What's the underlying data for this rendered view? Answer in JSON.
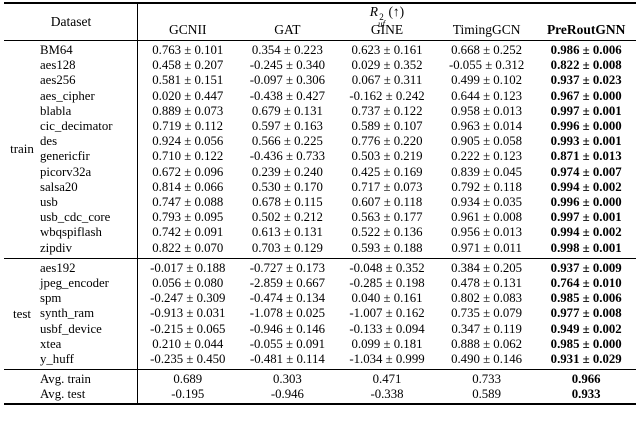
{
  "table": {
    "header": {
      "dataset_label": "Dataset",
      "metric_R": "R",
      "metric_sup": "2",
      "metric_sub": "uf",
      "metric_arrow": "(↑)",
      "columns": [
        "GCNII",
        "GAT",
        "GINE",
        "TimingGCN",
        "PreRoutGNN"
      ],
      "bold_column": "PreRoutGNN"
    },
    "sections": [
      {
        "group": "train",
        "rows": [
          {
            "dataset": "BM64",
            "values": [
              "0.763 ± 0.101",
              "0.354 ± 0.223",
              "0.623 ± 0.161",
              "0.668 ± 0.252",
              "0.986 ± 0.006"
            ]
          },
          {
            "dataset": "aes128",
            "values": [
              "0.458 ± 0.207",
              "-0.245 ± 0.340",
              "0.029 ± 0.352",
              "-0.055 ± 0.312",
              "0.822 ± 0.008"
            ]
          },
          {
            "dataset": "aes256",
            "values": [
              "0.581 ± 0.151",
              "-0.097 ± 0.306",
              "0.067 ± 0.311",
              "0.499 ± 0.102",
              "0.937 ± 0.023"
            ]
          },
          {
            "dataset": "aes_cipher",
            "values": [
              "0.020 ± 0.447",
              "-0.438 ± 0.427",
              "-0.162 ± 0.242",
              "0.644 ± 0.123",
              "0.967 ± 0.000"
            ]
          },
          {
            "dataset": "blabla",
            "values": [
              "0.889 ± 0.073",
              "0.679 ± 0.131",
              "0.737 ± 0.122",
              "0.958 ± 0.013",
              "0.997 ± 0.001"
            ]
          },
          {
            "dataset": "cic_decimator",
            "values": [
              "0.719 ± 0.112",
              "0.597 ± 0.163",
              "0.589 ± 0.107",
              "0.963 ± 0.014",
              "0.996 ± 0.000"
            ]
          },
          {
            "dataset": "des",
            "values": [
              "0.924 ± 0.056",
              "0.566 ± 0.225",
              "0.776 ± 0.220",
              "0.905 ± 0.058",
              "0.993 ± 0.001"
            ]
          },
          {
            "dataset": "genericfir",
            "values": [
              "0.710 ± 0.122",
              "-0.436 ± 0.733",
              "0.503 ± 0.219",
              "0.222 ± 0.123",
              "0.871 ± 0.013"
            ]
          },
          {
            "dataset": "picorv32a",
            "values": [
              "0.672 ± 0.096",
              "0.239 ± 0.240",
              "0.425 ± 0.169",
              "0.839 ± 0.045",
              "0.974 ± 0.007"
            ]
          },
          {
            "dataset": "salsa20",
            "values": [
              "0.814 ± 0.066",
              "0.530 ± 0.170",
              "0.717 ± 0.073",
              "0.792 ± 0.118",
              "0.994 ± 0.002"
            ]
          },
          {
            "dataset": "usb",
            "values": [
              "0.747 ± 0.088",
              "0.678 ± 0.115",
              "0.607 ± 0.118",
              "0.934 ± 0.035",
              "0.996 ± 0.000"
            ]
          },
          {
            "dataset": "usb_cdc_core",
            "values": [
              "0.793 ± 0.095",
              "0.502 ± 0.212",
              "0.563 ± 0.177",
              "0.961 ± 0.008",
              "0.997 ± 0.001"
            ]
          },
          {
            "dataset": "wbqspiflash",
            "values": [
              "0.742 ± 0.091",
              "0.613 ± 0.131",
              "0.522 ± 0.136",
              "0.956 ± 0.013",
              "0.994 ± 0.002"
            ]
          },
          {
            "dataset": "zipdiv",
            "values": [
              "0.822 ± 0.070",
              "0.703 ± 0.129",
              "0.593 ± 0.188",
              "0.971 ± 0.011",
              "0.998 ± 0.001"
            ]
          }
        ]
      },
      {
        "group": "test",
        "rows": [
          {
            "dataset": "aes192",
            "values": [
              "-0.017 ± 0.188",
              "-0.727 ± 0.173",
              "-0.048 ± 0.352",
              "0.384 ± 0.205",
              "0.937 ± 0.009"
            ]
          },
          {
            "dataset": "jpeg_encoder",
            "values": [
              "0.056 ± 0.080",
              "-2.859 ± 0.667",
              "-0.285 ± 0.198",
              "0.478 ± 0.131",
              "0.764 ± 0.010"
            ]
          },
          {
            "dataset": "spm",
            "values": [
              "-0.247 ± 0.309",
              "-0.474 ± 0.134",
              "0.040 ± 0.161",
              "0.802 ± 0.083",
              "0.985 ± 0.006"
            ]
          },
          {
            "dataset": "synth_ram",
            "values": [
              "-0.913 ± 0.031",
              "-1.078 ± 0.025",
              "-1.007 ± 0.162",
              "0.735 ± 0.079",
              "0.977 ± 0.008"
            ]
          },
          {
            "dataset": "usbf_device",
            "values": [
              "-0.215 ± 0.065",
              "-0.946 ± 0.146",
              "-0.133 ± 0.094",
              "0.347 ± 0.119",
              "0.949 ± 0.002"
            ]
          },
          {
            "dataset": "xtea",
            "values": [
              "0.210 ± 0.044",
              "-0.055 ± 0.091",
              "0.099 ± 0.181",
              "0.888 ± 0.062",
              "0.985 ± 0.000"
            ]
          },
          {
            "dataset": "y_huff",
            "values": [
              "-0.235 ± 0.450",
              "-0.481 ± 0.114",
              "-1.034 ± 0.999",
              "0.490 ± 0.146",
              "0.931 ± 0.029"
            ]
          }
        ]
      }
    ],
    "summary": [
      {
        "label": "Avg. train",
        "values": [
          "0.689",
          "0.303",
          "0.471",
          "0.733",
          "0.966"
        ]
      },
      {
        "label": "Avg. test",
        "values": [
          "-0.195",
          "-0.946",
          "-0.338",
          "0.589",
          "0.933"
        ]
      }
    ]
  }
}
